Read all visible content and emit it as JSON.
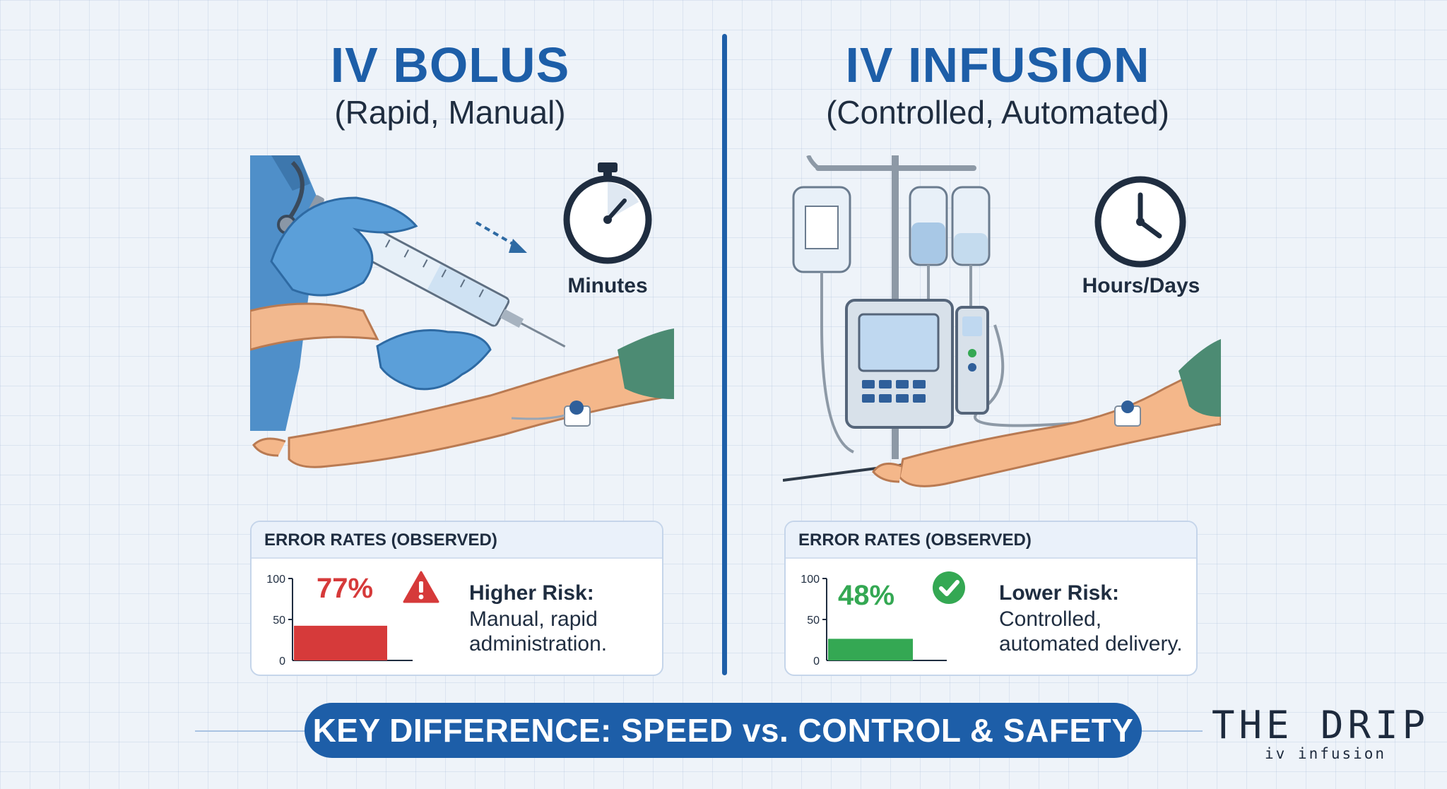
{
  "left": {
    "title": "IV BOLUS",
    "subtitle": "(Rapid, Manual)",
    "clock_label": "Minutes",
    "error_panel": {
      "header": "ERROR RATES (OBSERVED)",
      "axis_ticks": [
        "100",
        "50",
        "0"
      ],
      "value": 77,
      "value_label": "77%",
      "bar_color": "#d63a3a",
      "status_icon": "warning-triangle-icon",
      "risk_title": "Higher Risk:",
      "risk_desc": "Manual, rapid administration."
    }
  },
  "right": {
    "title": "IV INFUSION",
    "subtitle": "(Controlled, Automated)",
    "clock_label": "Hours/Days",
    "error_panel": {
      "header": "ERROR RATES (OBSERVED)",
      "axis_ticks": [
        "100",
        "50",
        "0"
      ],
      "value": 48,
      "value_label": "48%",
      "bar_color": "#34a853",
      "status_icon": "check-circle-icon",
      "risk_title": "Lower Risk:",
      "risk_desc": "Controlled, automated delivery."
    }
  },
  "key_difference": "KEY DIFFERENCE: SPEED vs. CONTROL & SAFETY",
  "logo": {
    "main": "THE DRIP",
    "sub": "iv infusion"
  },
  "colors": {
    "accent": "#1d5ea8",
    "text": "#1f2d40",
    "panel_header": "#eaf1fa"
  }
}
